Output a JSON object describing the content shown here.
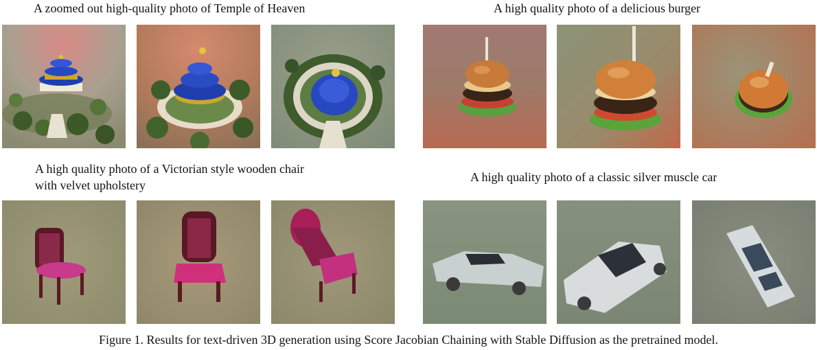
{
  "figure": {
    "prompts": {
      "temple": "A zoomed out high-quality photo of Temple of Heaven",
      "burger": "A high quality photo of a delicious burger",
      "chair_line1": "A high quality photo of a Victorian style wooden chair",
      "chair_line2": "with velvet upholstery",
      "car": "A high quality photo of a classic silver muscle car"
    },
    "caption": "Figure 1. Results for text-driven 3D generation using Score Jacobian Chaining with Stable Diffusion as the pretrained model."
  }
}
